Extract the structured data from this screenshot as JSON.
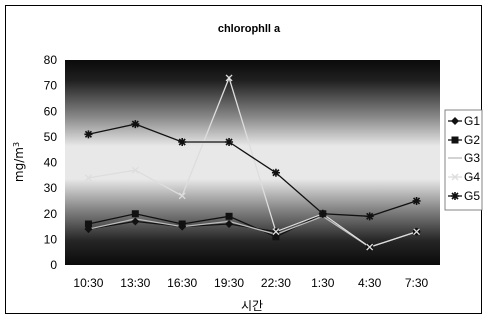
{
  "chart_data": {
    "type": "line",
    "title": "chlorophll a",
    "xlabel": "시간",
    "ylabel": "mg/m3",
    "ylabel_base": "mg/m",
    "ylabel_sup": "3",
    "ylim": [
      0,
      80
    ],
    "yticks": [
      "0",
      "10",
      "20",
      "30",
      "40",
      "50",
      "60",
      "70",
      "80"
    ],
    "categories": [
      "10:30",
      "13:30",
      "16:30",
      "19:30",
      "22:30",
      "1:30",
      "4:30",
      "7:30"
    ],
    "grid": false,
    "legend_position": "right",
    "plot_background": "dark gradient (black top and bottom, light band in middle)",
    "series": [
      {
        "name": "G1",
        "marker": "diamond",
        "color": "#111111",
        "values": [
          14,
          17,
          15,
          16,
          13,
          20,
          7,
          13
        ]
      },
      {
        "name": "G2",
        "marker": "square",
        "color": "#111111",
        "values": [
          16,
          20,
          16,
          19,
          11,
          20,
          7,
          13
        ]
      },
      {
        "name": "G3",
        "marker": "none",
        "color": "#bbbbbb",
        "values": [
          14,
          18,
          15,
          17,
          12,
          19,
          7,
          13
        ]
      },
      {
        "name": "G4",
        "marker": "x",
        "color": "#dddddd",
        "values": [
          34,
          37,
          27,
          73,
          13,
          20,
          7,
          13
        ]
      },
      {
        "name": "G5",
        "marker": "star",
        "color": "#111111",
        "values": [
          51,
          55,
          48,
          48,
          36,
          20,
          19,
          25
        ]
      }
    ]
  }
}
